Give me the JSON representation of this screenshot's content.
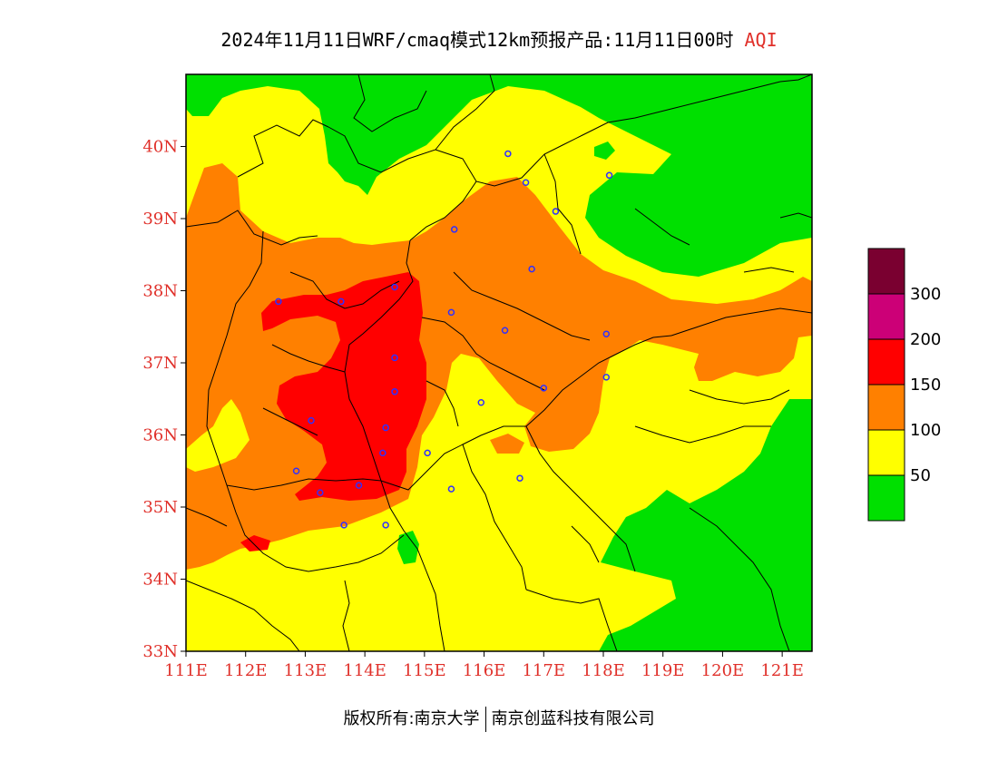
{
  "title": {
    "main": "2024年11月11日WRF/cmaq模式12km预报产品:11月11日00时",
    "variable": "AQI"
  },
  "axes": {
    "lat_labels": [
      "40N",
      "39N",
      "38N",
      "37N",
      "36N",
      "35N",
      "34N",
      "33N"
    ],
    "lon_labels": [
      "111E",
      "112E",
      "113E",
      "114E",
      "115E",
      "116E",
      "117E",
      "118E",
      "119E",
      "120E",
      "121E"
    ],
    "label_color": "#e0302a"
  },
  "legend": {
    "labels": [
      "300",
      "200",
      "150",
      "100",
      "50"
    ],
    "colors": [
      "#7a0030",
      "#cc0077",
      "#ff0000",
      "#ff8000",
      "#ffff00",
      "#00e000"
    ]
  },
  "map": {
    "lon_range": [
      111,
      121.5
    ],
    "lat_range": [
      33,
      41
    ],
    "stations": [
      [
        116.4,
        39.9
      ],
      [
        116.7,
        39.5
      ],
      [
        117.2,
        39.1
      ],
      [
        118.1,
        39.6
      ],
      [
        115.5,
        38.85
      ],
      [
        116.8,
        38.3
      ],
      [
        114.5,
        38.05
      ],
      [
        113.6,
        37.85
      ],
      [
        112.55,
        37.85
      ],
      [
        115.45,
        37.7
      ],
      [
        116.35,
        37.45
      ],
      [
        114.5,
        37.07
      ],
      [
        114.5,
        36.6
      ],
      [
        118.05,
        37.4
      ],
      [
        117.0,
        36.65
      ],
      [
        118.05,
        36.8
      ],
      [
        115.95,
        36.45
      ],
      [
        114.35,
        36.1
      ],
      [
        113.1,
        36.2
      ],
      [
        114.3,
        35.75
      ],
      [
        115.05,
        35.75
      ],
      [
        112.85,
        35.5
      ],
      [
        113.25,
        35.2
      ],
      [
        113.9,
        35.3
      ],
      [
        115.45,
        35.25
      ],
      [
        116.6,
        35.4
      ],
      [
        114.35,
        34.75
      ],
      [
        113.65,
        34.75
      ]
    ]
  },
  "footer": {
    "left": "版权所有:南京大学",
    "right": "南京创蓝科技有限公司"
  }
}
